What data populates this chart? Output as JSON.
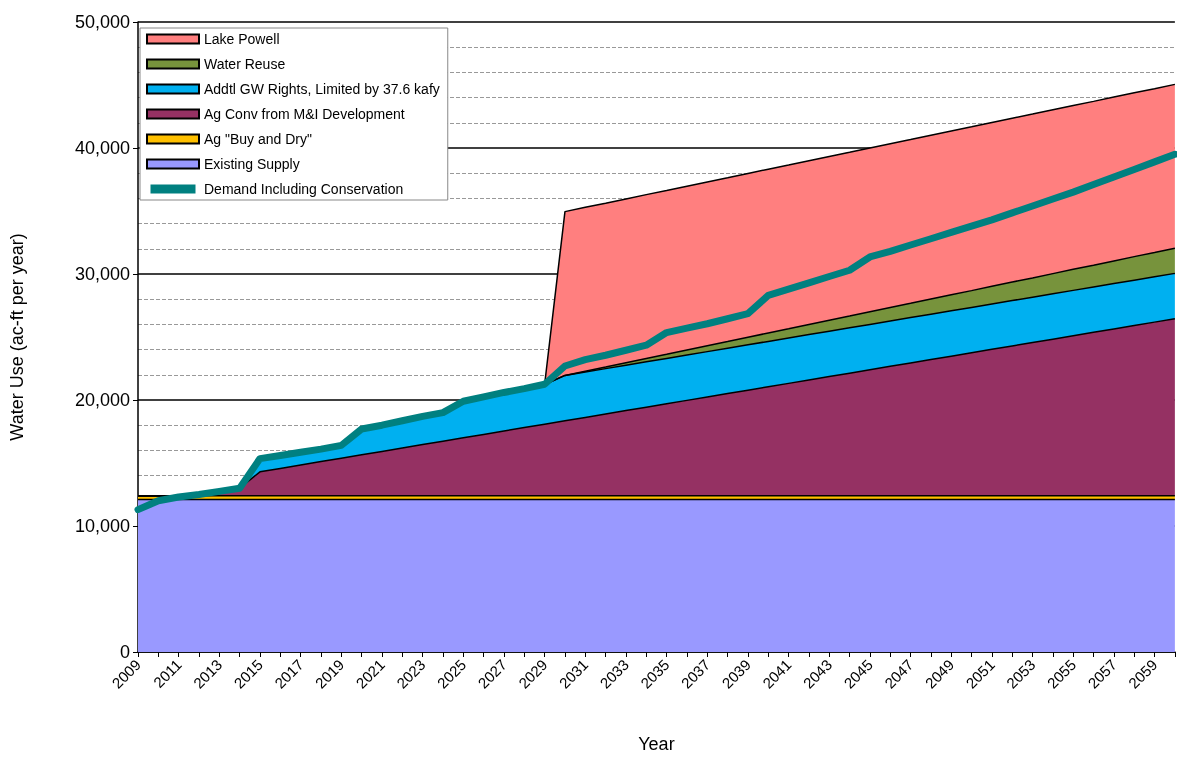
{
  "chart_data": {
    "type": "area",
    "xlabel": "Year",
    "ylabel": "Water Use (ac-ft per year)",
    "categories": [
      "2009",
      null,
      "2011",
      null,
      "2013",
      null,
      "2015",
      null,
      "2017",
      null,
      "2019",
      null,
      "2021",
      null,
      "2023",
      null,
      "2025",
      null,
      "2027",
      null,
      "2029",
      null,
      "2031",
      null,
      "2033",
      null,
      "2035",
      null,
      "2037",
      null,
      "2039",
      null,
      "2041",
      null,
      "2043",
      null,
      "2045",
      null,
      "2047",
      null,
      "2049",
      null,
      "2051",
      null,
      "2053",
      null,
      "2055",
      null,
      "2057",
      null,
      "2059",
      null
    ],
    "stacked": true,
    "series": [
      {
        "name": "Existing Supply",
        "color": "#9999ff",
        "values": [
          12100,
          12100,
          12100,
          12100,
          12100,
          12100,
          12100,
          12100,
          12100,
          12100,
          12100,
          12100,
          12100,
          12100,
          12100,
          12100,
          12100,
          12100,
          12100,
          12100,
          12100,
          12100,
          12100,
          12100,
          12100,
          12100,
          12100,
          12100,
          12100,
          12100,
          12100,
          12100,
          12100,
          12100,
          12100,
          12100,
          12100,
          12100,
          12100,
          12100,
          12100,
          12100,
          12100,
          12100,
          12100,
          12100,
          12100,
          12100,
          12100,
          12100,
          12100,
          12100
        ]
      },
      {
        "name": "Ag \"Buy and Dry\"",
        "color": "#ffc000",
        "values": [
          300,
          300,
          300,
          300,
          300,
          300,
          300,
          300,
          300,
          300,
          300,
          300,
          300,
          300,
          300,
          300,
          300,
          300,
          300,
          300,
          300,
          300,
          300,
          300,
          300,
          300,
          300,
          300,
          300,
          300,
          300,
          300,
          300,
          300,
          300,
          300,
          300,
          300,
          300,
          300,
          300,
          300,
          300,
          300,
          300,
          300,
          300,
          300,
          300,
          300,
          300,
          300
        ]
      },
      {
        "name": "Ag Conv from M&I Development",
        "color": "#953163",
        "values": [
          0,
          0,
          0,
          0,
          300,
          600,
          1900,
          2170,
          2440,
          2710,
          2980,
          3250,
          3520,
          3790,
          4060,
          4330,
          4600,
          4870,
          5140,
          5410,
          5680,
          5950,
          6220,
          6490,
          6760,
          7030,
          7300,
          7570,
          7840,
          8110,
          8380,
          8650,
          8920,
          9190,
          9460,
          9730,
          10000,
          10270,
          10540,
          10810,
          11080,
          11350,
          11620,
          11890,
          12160,
          12430,
          12700,
          12970,
          13240,
          13510,
          13780,
          14050
        ]
      },
      {
        "name": "Addtl GW Rights, Limited by 37.6 kafy",
        "color": "#00b0f0",
        "values": [
          0,
          0,
          0,
          0,
          0,
          0,
          1050,
          1050,
          1000,
          1000,
          1000,
          2050,
          2100,
          2150,
          2250,
          2250,
          2900,
          3000,
          3050,
          3100,
          3150,
          3600,
          3600,
          3600,
          3600,
          3600,
          3600,
          3600,
          3600,
          3600,
          3600,
          3600,
          3600,
          3600,
          3600,
          3600,
          3600,
          3600,
          3600,
          3600,
          3600,
          3600,
          3600,
          3600,
          3600,
          3600,
          3600,
          3600,
          3600,
          3600,
          3600,
          3600
        ]
      },
      {
        "name": "Water Reuse",
        "color": "#77933c",
        "values": [
          0,
          0,
          0,
          0,
          0,
          0,
          0,
          0,
          0,
          0,
          0,
          0,
          0,
          0,
          0,
          0,
          0,
          0,
          0,
          0,
          0,
          0,
          70,
          130,
          200,
          270,
          330,
          400,
          470,
          530,
          600,
          670,
          730,
          800,
          870,
          930,
          1000,
          1070,
          1130,
          1200,
          1270,
          1330,
          1400,
          1470,
          1530,
          1600,
          1670,
          1730,
          1800,
          1870,
          1930,
          2000
        ]
      },
      {
        "name": "Lake Powell",
        "color": "#ff7f7f",
        "values": [
          0,
          0,
          0,
          0,
          0,
          0,
          0,
          0,
          0,
          0,
          0,
          0,
          0,
          0,
          0,
          0,
          0,
          0,
          0,
          0,
          0,
          13000,
          13000,
          13000,
          13000,
          13000,
          13000,
          13000,
          13000,
          13000,
          13000,
          13000,
          13000,
          13000,
          13000,
          13000,
          13000,
          13000,
          13000,
          13000,
          13000,
          13000,
          13000,
          13000,
          13000,
          13000,
          13000,
          13000,
          13000,
          13000,
          13000,
          13000
        ]
      },
      {
        "name": "Demand Including Conservation",
        "type": "line",
        "color": "#008080",
        "values": [
          11300,
          12000,
          12300,
          12500,
          12750,
          13000,
          15350,
          15600,
          15850,
          16100,
          16400,
          17700,
          18000,
          18350,
          18700,
          19000,
          19900,
          20250,
          20600,
          20900,
          21250,
          22700,
          23200,
          23550,
          23950,
          24350,
          25350,
          25700,
          26050,
          26450,
          26850,
          28300,
          28800,
          29300,
          29800,
          30300,
          31350,
          31800,
          32300,
          32800,
          33300,
          33800,
          34300,
          34850,
          35400,
          35950,
          36500,
          37100,
          37700,
          38300,
          38900,
          39500
        ]
      }
    ],
    "ylim": [
      0,
      50000
    ],
    "yticks": [
      0,
      {
        "value": 10000,
        "label": "10,000"
      },
      {
        "value": 20000,
        "label": "20,000"
      },
      {
        "value": 30000,
        "label": "30,000"
      },
      {
        "value": 40000,
        "label": "40,000"
      },
      {
        "value": 50000,
        "label": "50,000"
      }
    ],
    "grid": "y",
    "legend": "top left",
    "marker": "none"
  }
}
